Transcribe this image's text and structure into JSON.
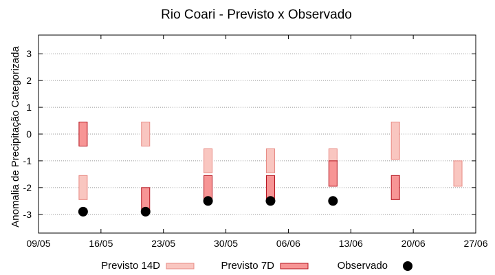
{
  "colors": {
    "previsto_14d_fill": "#f9c6c0",
    "previsto_14d_stroke": "#e88a84",
    "previsto_7d_fill": "#f79595",
    "previsto_7d_stroke": "#b4141e",
    "observado": "#000000",
    "grid": "#999999"
  },
  "chart_data": {
    "type": "scatter",
    "title": "Rio Coari - Previsto x Observado",
    "xlabel": "",
    "ylabel": "Anomalia de Precipitação Categorizada",
    "xlim": [
      "2022-05-09",
      "2022-06-27"
    ],
    "ylim": [
      -3.7,
      3.7
    ],
    "x_tick_labels": [
      "09/05",
      "16/05",
      "23/05",
      "30/05",
      "06/06",
      "13/06",
      "20/06",
      "27/06"
    ],
    "y_ticks": [
      3,
      2,
      1,
      0,
      -1,
      -2,
      -3
    ],
    "y_tick_labels": [
      "3",
      "2",
      "1",
      "0",
      "-1",
      "-2",
      "-3"
    ],
    "grid": "horizontal dotted",
    "legend_position": "bottom",
    "series": [
      {
        "name": "Previsto 14D",
        "kind": "range",
        "points": [
          {
            "x": "2022-05-14",
            "low": -2.45,
            "high": -1.55
          },
          {
            "x": "2022-05-21",
            "low": -0.45,
            "high": 0.45
          },
          {
            "x": "2022-05-28",
            "low": -1.45,
            "high": -0.55
          },
          {
            "x": "2022-06-04",
            "low": -1.45,
            "high": -0.55
          },
          {
            "x": "2022-06-11",
            "low": -1.0,
            "high": -0.55
          },
          {
            "x": "2022-06-18",
            "low": -0.95,
            "high": 0.45
          },
          {
            "x": "2022-06-25",
            "low": -1.95,
            "high": -1.0
          }
        ]
      },
      {
        "name": "Previsto 7D",
        "kind": "range",
        "points": [
          {
            "x": "2022-05-14",
            "low": -0.45,
            "high": 0.45
          },
          {
            "x": "2022-05-21",
            "low": -2.9,
            "high": -2.0
          },
          {
            "x": "2022-05-28",
            "low": -2.5,
            "high": -1.55
          },
          {
            "x": "2022-06-04",
            "low": -2.5,
            "high": -1.55
          },
          {
            "x": "2022-06-11",
            "low": -1.95,
            "high": -1.0
          },
          {
            "x": "2022-06-18",
            "low": -2.45,
            "high": -1.55
          }
        ]
      },
      {
        "name": "Observado",
        "kind": "point",
        "points": [
          {
            "x": "2022-05-14",
            "y": -2.9
          },
          {
            "x": "2022-05-21",
            "y": -2.9
          },
          {
            "x": "2022-05-28",
            "y": -2.5
          },
          {
            "x": "2022-06-04",
            "y": -2.5
          },
          {
            "x": "2022-06-11",
            "y": -2.5
          }
        ]
      }
    ]
  }
}
